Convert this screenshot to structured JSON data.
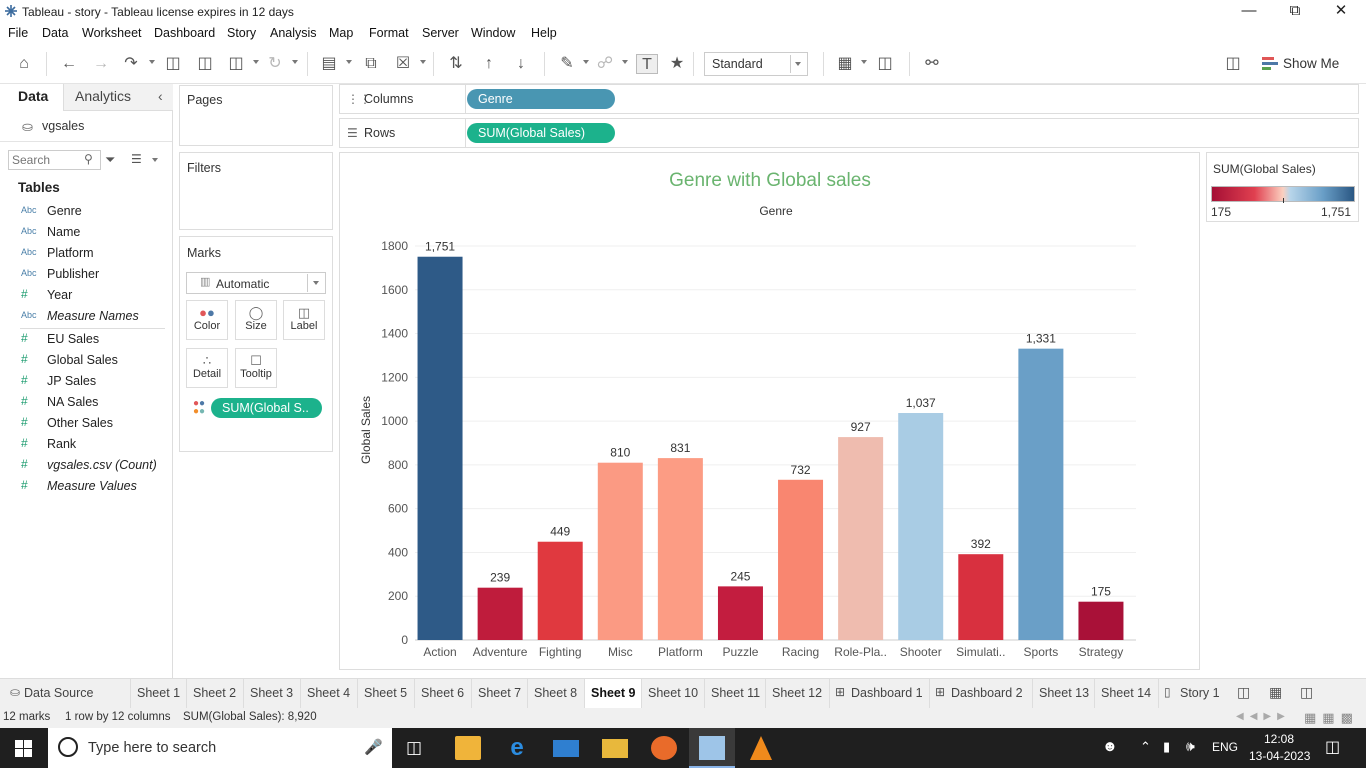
{
  "window": {
    "title": "Tableau - story - Tableau license expires in 12 days"
  },
  "menu": [
    "File",
    "Data",
    "Worksheet",
    "Dashboard",
    "Story",
    "Analysis",
    "Map",
    "Format",
    "Server",
    "Window",
    "Help"
  ],
  "toolbar": {
    "fit_select": "Standard",
    "show_me_label": "Show Me"
  },
  "data_pane": {
    "tab_data": "Data",
    "tab_analytics": "Analytics",
    "data_source": "vgsales",
    "search_placeholder": "Search",
    "tables_heading": "Tables",
    "fields": [
      {
        "type": "Abc",
        "name": "Genre",
        "italic": false
      },
      {
        "type": "Abc",
        "name": "Name",
        "italic": false
      },
      {
        "type": "Abc",
        "name": "Platform",
        "italic": false
      },
      {
        "type": "Abc",
        "name": "Publisher",
        "italic": false
      },
      {
        "type": "#",
        "name": "Year",
        "italic": false
      },
      {
        "type": "Abc",
        "name": "Measure Names",
        "italic": true
      },
      {
        "type": "#",
        "name": "EU Sales",
        "italic": false
      },
      {
        "type": "#",
        "name": "Global Sales",
        "italic": false
      },
      {
        "type": "#",
        "name": "JP Sales",
        "italic": false
      },
      {
        "type": "#",
        "name": "NA Sales",
        "italic": false
      },
      {
        "type": "#",
        "name": "Other Sales",
        "italic": false
      },
      {
        "type": "#",
        "name": "Rank",
        "italic": false
      },
      {
        "type": "#",
        "name": "vgsales.csv (Count)",
        "italic": true
      },
      {
        "type": "#",
        "name": "Measure Values",
        "italic": true
      }
    ]
  },
  "pages_card": {
    "title": "Pages"
  },
  "filters_card": {
    "title": "Filters"
  },
  "marks_card": {
    "title": "Marks",
    "mark_type": "Automatic",
    "buttons": {
      "color": "Color",
      "size": "Size",
      "label": "Label",
      "detail": "Detail",
      "tooltip": "Tooltip"
    },
    "color_pill": "SUM(Global S.."
  },
  "shelves": {
    "columns_label": "Columns",
    "columns_pill": "Genre",
    "rows_label": "Rows",
    "rows_pill": "SUM(Global Sales)"
  },
  "legend": {
    "title": "SUM(Global Sales)",
    "min_label": "175",
    "max_label": "1,751"
  },
  "chart_data": {
    "type": "bar",
    "title": "Genre with Global sales",
    "column_header": "Genre",
    "ylabel": "Global Sales",
    "ylim": [
      0,
      1800
    ],
    "yticks": [
      0,
      200,
      400,
      600,
      800,
      1000,
      1200,
      1400,
      1600,
      1800
    ],
    "categories": [
      "Action",
      "Adventure",
      "Fighting",
      "Misc",
      "Platform",
      "Puzzle",
      "Racing",
      "Role-Pla..",
      "Shooter",
      "Simulati..",
      "Sports",
      "Strategy"
    ],
    "values": [
      1751,
      239,
      449,
      810,
      831,
      245,
      732,
      927,
      1037,
      392,
      1331,
      175
    ],
    "data_labels": [
      "1,751",
      "239",
      "449",
      "810",
      "831",
      "245",
      "732",
      "927",
      "1,037",
      "392",
      "1,331",
      "175"
    ],
    "bar_colors": [
      "#2e5a87",
      "#bf1c3c",
      "#e0393f",
      "#fb9a83",
      "#fc9c84",
      "#c31d3f",
      "#f98670",
      "#efbcaf",
      "#a9cce4",
      "#d8303f",
      "#6a9fc7",
      "#a91138"
    ],
    "grid": true,
    "title_color": "#6ab46f"
  },
  "sheet_tabs": {
    "data_source": "Data Source",
    "tabs": [
      "Sheet 1",
      "Sheet 2",
      "Sheet 3",
      "Sheet 4",
      "Sheet 5",
      "Sheet 6",
      "Sheet 7",
      "Sheet 8",
      "Sheet 9",
      "Sheet 10",
      "Sheet 11",
      "Sheet 12",
      "Dashboard 1",
      "Dashboard 2",
      "Sheet 13",
      "Sheet 14",
      "Story 1"
    ],
    "active": "Sheet 9"
  },
  "status": {
    "marks": "12 marks",
    "dims": "1 row by 12 columns",
    "sum": "SUM(Global Sales): 8,920"
  },
  "taskbar": {
    "search_placeholder": "Type here to search",
    "lang": "ENG",
    "time": "12:08",
    "date": "13-04-2023"
  }
}
